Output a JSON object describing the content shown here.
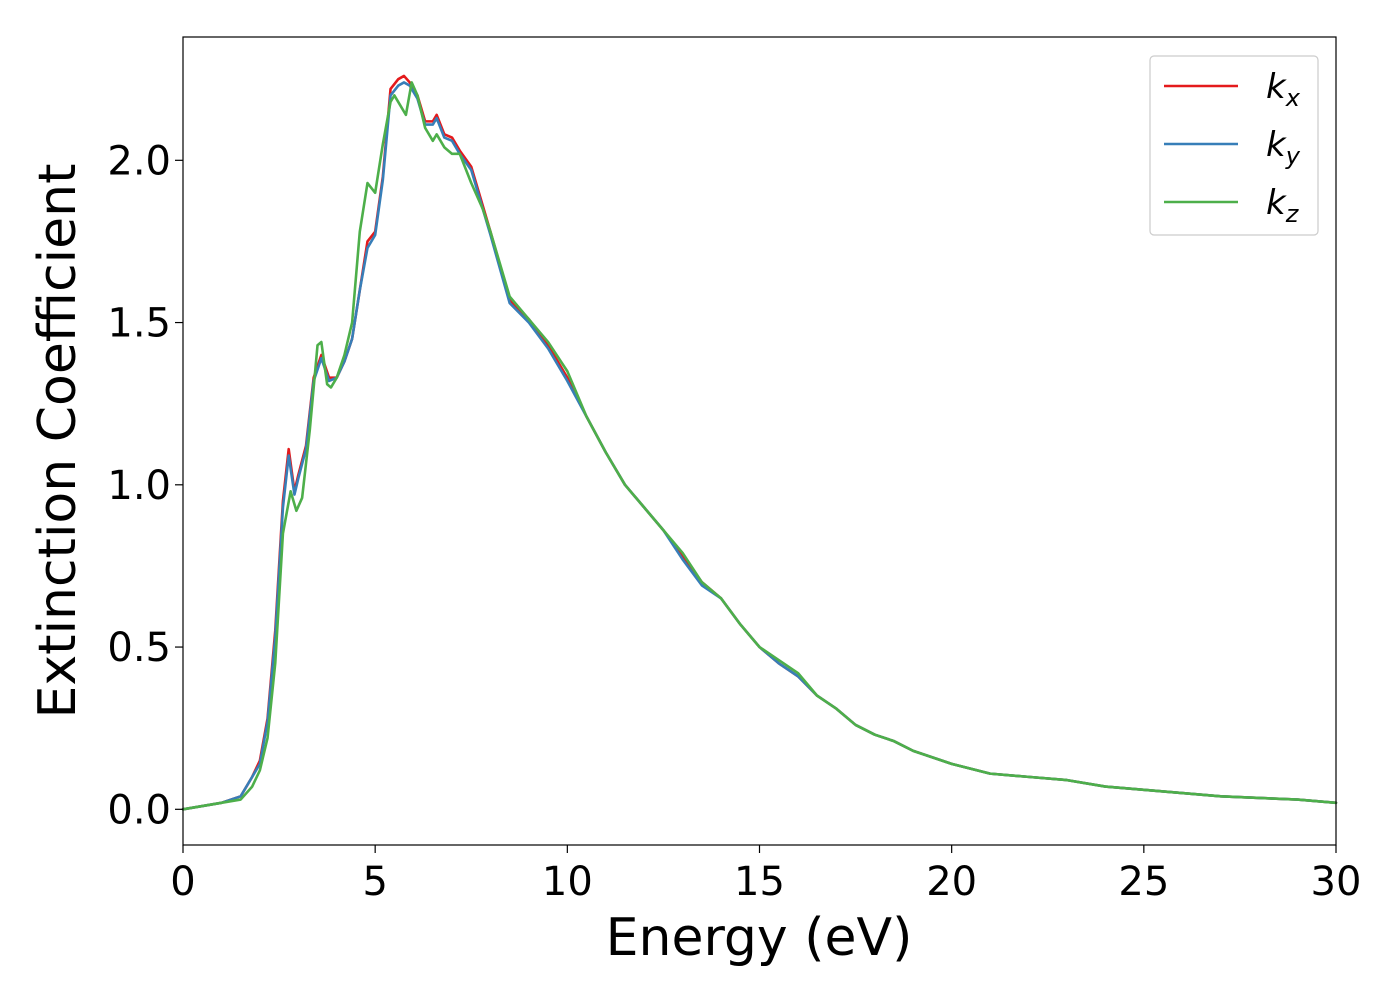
{
  "chart_data": {
    "type": "line",
    "title": "",
    "xlabel": "Energy (eV)",
    "ylabel": "Extinction Coefficient",
    "xlim": [
      0,
      30
    ],
    "ylim": [
      -0.11,
      2.38
    ],
    "xticks": [
      0,
      5,
      10,
      15,
      20,
      25,
      30
    ],
    "xtick_labels": [
      "0",
      "5",
      "10",
      "15",
      "20",
      "25",
      "30"
    ],
    "yticks": [
      0.0,
      0.5,
      1.0,
      1.5,
      2.0
    ],
    "ytick_labels": [
      "0.0",
      "0.5",
      "1.0",
      "1.5",
      "2.0"
    ],
    "grid": false,
    "legend_position": "top-right",
    "series": [
      {
        "name": "k_x",
        "label_main": "k",
        "label_sub": "x",
        "color": "#e41a1c",
        "x": [
          0,
          0.5,
          1.0,
          1.5,
          1.8,
          2.0,
          2.2,
          2.4,
          2.6,
          2.75,
          2.9,
          3.0,
          3.2,
          3.4,
          3.6,
          3.8,
          4.0,
          4.2,
          4.4,
          4.6,
          4.8,
          5.0,
          5.2,
          5.4,
          5.6,
          5.75,
          5.9,
          6.1,
          6.3,
          6.5,
          6.6,
          6.8,
          7.0,
          7.2,
          7.5,
          8.0,
          8.5,
          9.0,
          9.5,
          10.0,
          10.5,
          11.0,
          11.5,
          12.0,
          12.5,
          13.0,
          13.5,
          14.0,
          14.5,
          15.0,
          15.5,
          16.0,
          16.5,
          17.0,
          17.5,
          18.0,
          18.5,
          19.0,
          19.5,
          20.0,
          21.0,
          22.0,
          23.0,
          24.0,
          25.0,
          26.0,
          27.0,
          28.0,
          29.0,
          30.0
        ],
        "y": [
          0.0,
          0.01,
          0.02,
          0.04,
          0.1,
          0.15,
          0.28,
          0.55,
          0.95,
          1.11,
          0.98,
          1.03,
          1.12,
          1.33,
          1.4,
          1.33,
          1.33,
          1.38,
          1.45,
          1.6,
          1.75,
          1.78,
          1.95,
          2.22,
          2.25,
          2.26,
          2.24,
          2.2,
          2.12,
          2.12,
          2.14,
          2.08,
          2.07,
          2.03,
          1.98,
          1.78,
          1.57,
          1.51,
          1.43,
          1.33,
          1.21,
          1.1,
          1.0,
          0.93,
          0.86,
          0.78,
          0.7,
          0.65,
          0.57,
          0.5,
          0.45,
          0.41,
          0.35,
          0.31,
          0.26,
          0.23,
          0.21,
          0.18,
          0.16,
          0.14,
          0.11,
          0.1,
          0.09,
          0.07,
          0.06,
          0.05,
          0.04,
          0.035,
          0.03,
          0.02
        ]
      },
      {
        "name": "k_y",
        "label_main": "k",
        "label_sub": "y",
        "color": "#377eb8",
        "x": [
          0,
          0.5,
          1.0,
          1.5,
          1.8,
          2.0,
          2.2,
          2.4,
          2.6,
          2.75,
          2.9,
          3.0,
          3.2,
          3.4,
          3.6,
          3.8,
          4.0,
          4.2,
          4.4,
          4.6,
          4.8,
          5.0,
          5.2,
          5.4,
          5.6,
          5.75,
          5.9,
          6.1,
          6.3,
          6.5,
          6.6,
          6.8,
          7.0,
          7.2,
          7.5,
          8.0,
          8.5,
          9.0,
          9.5,
          10.0,
          10.5,
          11.0,
          11.5,
          12.0,
          12.5,
          13.0,
          13.5,
          14.0,
          14.5,
          15.0,
          15.5,
          16.0,
          16.5,
          17.0,
          17.5,
          18.0,
          18.5,
          19.0,
          19.5,
          20.0,
          21.0,
          22.0,
          23.0,
          24.0,
          25.0,
          26.0,
          27.0,
          28.0,
          29.0,
          30.0
        ],
        "y": [
          0.0,
          0.01,
          0.02,
          0.04,
          0.1,
          0.14,
          0.27,
          0.53,
          0.93,
          1.09,
          0.97,
          1.02,
          1.11,
          1.32,
          1.39,
          1.32,
          1.33,
          1.38,
          1.45,
          1.6,
          1.73,
          1.77,
          1.94,
          2.2,
          2.23,
          2.24,
          2.23,
          2.19,
          2.11,
          2.11,
          2.13,
          2.07,
          2.06,
          2.02,
          1.97,
          1.77,
          1.56,
          1.5,
          1.42,
          1.32,
          1.21,
          1.1,
          1.0,
          0.93,
          0.86,
          0.77,
          0.69,
          0.65,
          0.57,
          0.5,
          0.45,
          0.41,
          0.35,
          0.31,
          0.26,
          0.23,
          0.21,
          0.18,
          0.16,
          0.14,
          0.11,
          0.1,
          0.09,
          0.07,
          0.06,
          0.05,
          0.04,
          0.035,
          0.03,
          0.02
        ]
      },
      {
        "name": "k_z",
        "label_main": "k",
        "label_sub": "z",
        "color": "#4daf4a",
        "x": [
          0,
          0.5,
          1.0,
          1.5,
          1.8,
          2.0,
          2.2,
          2.4,
          2.6,
          2.8,
          2.95,
          3.1,
          3.3,
          3.5,
          3.6,
          3.75,
          3.85,
          4.0,
          4.2,
          4.4,
          4.6,
          4.8,
          5.0,
          5.2,
          5.4,
          5.5,
          5.6,
          5.8,
          5.95,
          6.1,
          6.3,
          6.5,
          6.6,
          6.8,
          7.0,
          7.2,
          7.5,
          7.8,
          8.0,
          8.5,
          9.0,
          9.5,
          10.0,
          10.5,
          11.0,
          11.5,
          12.0,
          12.5,
          13.0,
          13.5,
          14.0,
          14.5,
          15.0,
          15.5,
          16.0,
          16.5,
          17.0,
          17.5,
          18.0,
          18.5,
          19.0,
          19.5,
          20.0,
          21.0,
          22.0,
          23.0,
          24.0,
          25.0,
          26.0,
          27.0,
          28.0,
          29.0,
          30.0
        ],
        "y": [
          0.0,
          0.01,
          0.02,
          0.03,
          0.07,
          0.12,
          0.22,
          0.45,
          0.85,
          0.98,
          0.92,
          0.96,
          1.17,
          1.43,
          1.44,
          1.31,
          1.3,
          1.33,
          1.4,
          1.5,
          1.78,
          1.93,
          1.9,
          2.05,
          2.18,
          2.2,
          2.18,
          2.14,
          2.24,
          2.2,
          2.1,
          2.06,
          2.08,
          2.04,
          2.02,
          2.02,
          1.93,
          1.85,
          1.78,
          1.58,
          1.51,
          1.44,
          1.35,
          1.21,
          1.1,
          1.0,
          0.93,
          0.86,
          0.79,
          0.7,
          0.65,
          0.57,
          0.5,
          0.46,
          0.42,
          0.35,
          0.31,
          0.26,
          0.23,
          0.21,
          0.18,
          0.16,
          0.14,
          0.11,
          0.1,
          0.09,
          0.07,
          0.06,
          0.05,
          0.04,
          0.035,
          0.03,
          0.02
        ]
      }
    ]
  }
}
